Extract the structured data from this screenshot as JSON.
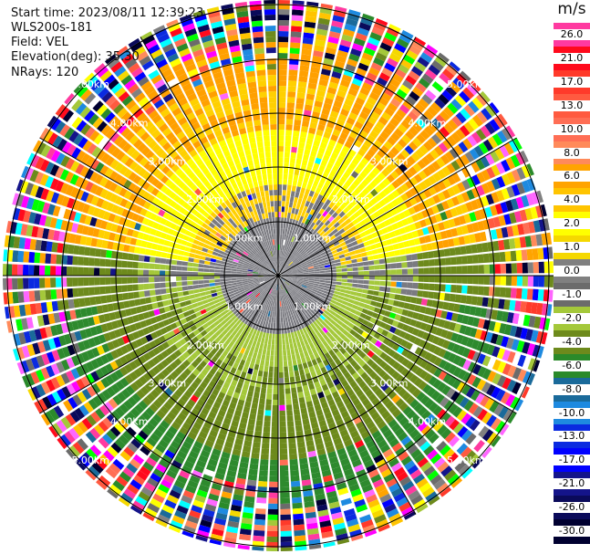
{
  "info": {
    "start_time": "Start time: 2023/08/11 12:39:23",
    "site": "WLS200s-181",
    "field": "Field: VEL",
    "elevation": "Elevation(deg): 35.30",
    "nrays": "NRays: 120"
  },
  "colorbar": {
    "unit": "m/s",
    "levels": [
      {
        "label": "26.0",
        "color": "#ff3aa0"
      },
      {
        "label": "21.0",
        "color": "#ff0a1c"
      },
      {
        "label": "17.0",
        "color": "#ff3a2a"
      },
      {
        "label": "13.0",
        "color": "#ff5a40"
      },
      {
        "label": "10.0",
        "color": "#ff6e55"
      },
      {
        "label": "8.0",
        "color": "#ff8a5a"
      },
      {
        "label": "6.0",
        "color": "#ffa400"
      },
      {
        "label": "4.0",
        "color": "#ffc400"
      },
      {
        "label": "2.0",
        "color": "#ffff00"
      },
      {
        "label": "1.0",
        "color": "#f5d800"
      },
      {
        "label": "0.0",
        "color": "#808080"
      },
      {
        "label": "-1.0",
        "color": "#6b6b6b"
      },
      {
        "label": "-2.0",
        "color": "#a4c83a"
      },
      {
        "label": "-4.0",
        "color": "#6d8a1c"
      },
      {
        "label": "-6.0",
        "color": "#2a8a2a"
      },
      {
        "label": "-8.0",
        "color": "#1a6a9a"
      },
      {
        "label": "-10.0",
        "color": "#1e8ae0"
      },
      {
        "label": "-13.0",
        "color": "#0a2ae0"
      },
      {
        "label": "-17.0",
        "color": "#0000ff"
      },
      {
        "label": "-21.0",
        "color": "#14148a"
      },
      {
        "label": "-26.0",
        "color": "#0a0a5a"
      },
      {
        "label": "-30.0",
        "color": "#000030"
      }
    ]
  },
  "range_rings": {
    "labels": [
      "1.00km",
      "2.00km",
      "3.00km",
      "4.00km",
      "5.00km"
    ]
  },
  "palette": {
    "near_gray": "#7a7a80",
    "green_light": "#a4c83a",
    "green_olive": "#6d8a1c",
    "green_dark": "#2e8a2e",
    "yellow": "#ffff00",
    "gold": "#ffd000",
    "orange": "#ffa000"
  }
}
